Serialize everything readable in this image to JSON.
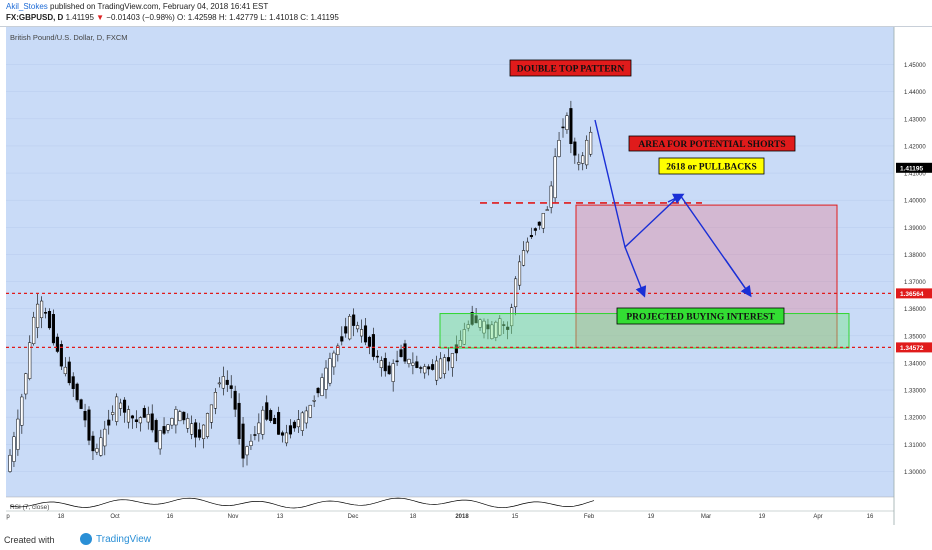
{
  "header": {
    "author": "Akil_Stokes",
    "published": "published on TradingView.com, February 04, 2018 16:41 EST",
    "symbol": "FX:GBPUSD, D",
    "last": "1.41195",
    "change": "−0.01403 (−0.98%)",
    "ohlc": "O: 1.42598 H: 1.42779 L: 1.41018 C: 1.41195"
  },
  "chart_title": "British Pound/U.S. Dollar, D, FXCM",
  "chart_data": {
    "type": "candlestick",
    "ylim": [
      1.2935,
      1.4565
    ],
    "y_ticks": [
      "1.30000",
      "1.31000",
      "1.32000",
      "1.33000",
      "1.34000",
      "1.35000",
      "1.36000",
      "1.37000",
      "1.38000",
      "1.39000",
      "1.40000",
      "1.41000",
      "1.42000",
      "1.43000",
      "1.44000",
      "1.45000"
    ],
    "x_ticks": [
      "p",
      "18",
      "Oct",
      "16",
      "Nov",
      "13",
      "Dec",
      "18",
      "2018",
      "15",
      "Feb",
      "19",
      "Mar",
      "19",
      "Apr",
      "16"
    ],
    "price_labels": [
      {
        "text": "1.41195",
        "value": 1.41195,
        "color": "#000000"
      },
      {
        "text": "1.36564",
        "value": 1.36564,
        "color": "#e01b1b"
      },
      {
        "text": "1.34572",
        "value": 1.34572,
        "color": "#e01b1b"
      }
    ],
    "levels": [
      {
        "value": 1.36564,
        "color": "#e01b1b",
        "style": "dashed"
      },
      {
        "value": 1.34572,
        "color": "#e01b1b",
        "style": "dashed"
      }
    ],
    "annotations": [
      {
        "text": "DOUBLE TOP PATTERN",
        "bg": "#e01b1b",
        "fg": "#111111"
      },
      {
        "text": "AREA FOR POTENTIAL SHORTS",
        "bg": "#e01b1b",
        "fg": "#111111"
      },
      {
        "text": "2618 or PULLBACKS",
        "bg": "#ffff00",
        "fg": "#111111"
      },
      {
        "text": "PROJECTED BUYING INTEREST",
        "bg": "#33dd33",
        "fg": "#111111"
      }
    ],
    "zones": [
      {
        "name": "shorts-zone",
        "top": 1.3982,
        "bottom": 1.3455,
        "border": "#e01b1b",
        "fill": "rgba(230,120,140,0.35)"
      },
      {
        "name": "buying-zone",
        "top": 1.3582,
        "bottom": 1.3455,
        "border": "#2ed62e",
        "fill": "rgba(120,230,140,0.45)"
      }
    ],
    "indicator_label": "RSI (7, close)",
    "colors": {
      "plot_bg": "#c9dbf7",
      "up": "#ffffff",
      "down": "#000000",
      "arrow": "#1a2fd6"
    }
  },
  "footer": {
    "created": "Created with",
    "brand": "TradingView"
  }
}
